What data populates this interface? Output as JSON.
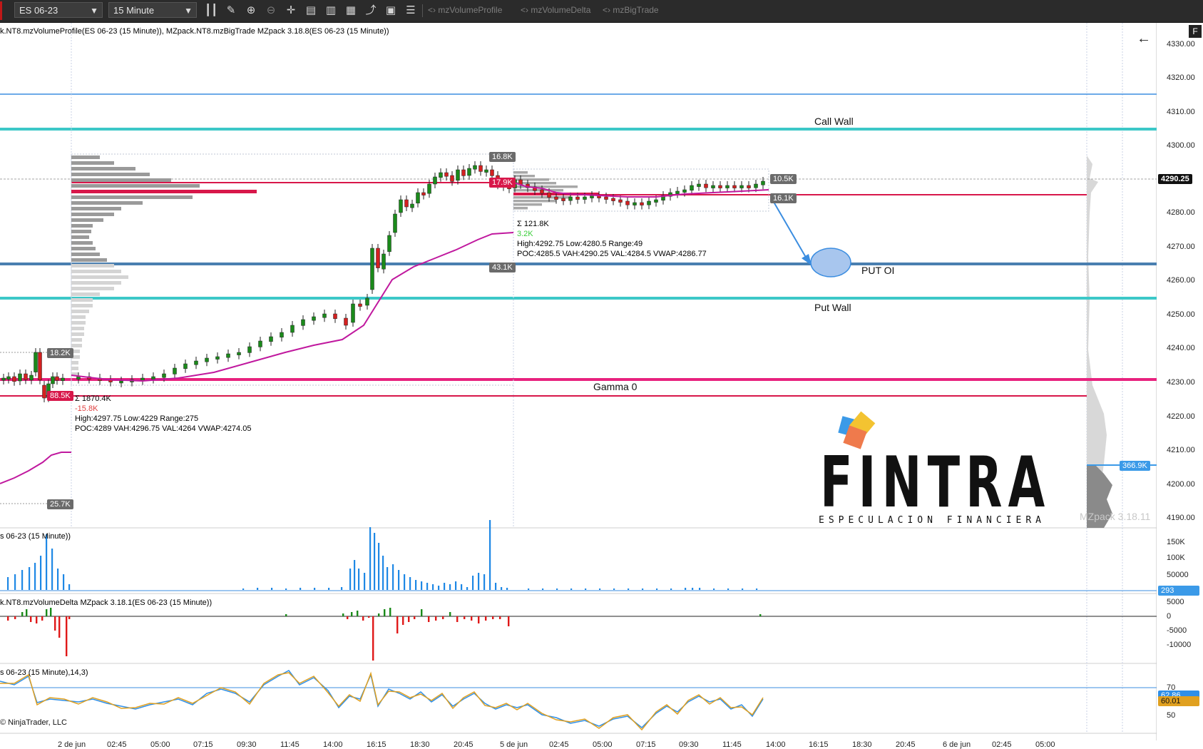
{
  "toolbar": {
    "instrument": "ES 06-23",
    "interval": "15 Minute",
    "indicators": [
      "mzVolumeProfile",
      "mzVolumeDelta",
      "mzBigTrade"
    ]
  },
  "chart": {
    "header": "k.NT8.mzVolumeProfile(ES 06-23 (15 Minute)), MZpack.NT8.mzBigTrade MZpack 3.18.8(ES 06-23 (15 Minute))",
    "levels": {
      "call_wall": "Call Wall",
      "put_oi": "PUT OI",
      "put_wall": "Put Wall",
      "gamma_0": "Gamma 0"
    },
    "profile1": {
      "sum": "Σ 1870.4K",
      "delta": "-15.8K",
      "hilo": "High:4297.75 Low:4229 Range:275",
      "poc": "POC:4289 VAH:4296.75 VAL:4264 VWAP:4274.05"
    },
    "profile2": {
      "sum": "Σ 121.8K",
      "delta": "3.2K",
      "hilo": "High:4292.75 Low:4280.5 Range:49",
      "poc": "POC:4285.5 VAH:4290.25 VAL:4284.5 VWAP:4286.77"
    },
    "tags": {
      "t16_8k": "16.8K",
      "t17_9k": "17.9K",
      "t43_1k": "43.1K",
      "t18_2k": "18.2K",
      "t88_5k": "88.5K",
      "t25_7k": "25.7K",
      "t10_5k": "10.5K",
      "t16_1k": "16.1K",
      "t366_9k": "366.9K"
    },
    "price_axis": [
      "4330.00",
      "4320.00",
      "4310.00",
      "4300.00",
      "4280.00",
      "4270.00",
      "4260.00",
      "4250.00",
      "4240.00",
      "4230.00",
      "4220.00",
      "4210.00",
      "4200.00",
      "4190.00"
    ],
    "last_price": "4290.25",
    "watermark": "MZpack 3.18.11"
  },
  "volume_panel": {
    "title": "s 06-23 (15 Minute))",
    "axis": [
      "150K",
      "100K",
      "50000"
    ],
    "last": "293"
  },
  "delta_panel": {
    "title": "k.NT8.mzVolumeDelta MZpack 3.18.1(ES 06-23 (15 Minute))",
    "axis": [
      "5000",
      "0",
      "-5000",
      "-10000"
    ]
  },
  "stoch_panel": {
    "title": "s 06-23 (15 Minute),14,3)",
    "axis": [
      "70",
      "50"
    ],
    "value1": "62.86",
    "value2": "60.01"
  },
  "time_axis": [
    "2 de jun",
    "02:45",
    "05:00",
    "07:15",
    "09:30",
    "11:45",
    "14:00",
    "16:15",
    "18:30",
    "20:45",
    "5 de jun",
    "02:45",
    "05:00",
    "07:15",
    "09:30",
    "11:45",
    "14:00",
    "16:15",
    "18:30",
    "20:45",
    "6 de jun",
    "02:45",
    "05:00"
  ],
  "copyright": "© NinjaTrader, LLC",
  "logo": {
    "name": "FINTRA",
    "tagline": "ESPECULACION FINANCIERA"
  },
  "colors": {
    "toolbar_bg": "#2b2b2b",
    "call_put_wall": "#3cc8c8",
    "put_oi_line": "#4a7fb0",
    "gamma_line": "#e8227e",
    "poc_line": "#d8174a",
    "vwap": "#c0189e",
    "up_candle": "#1a8a1a",
    "down_candle": "#d42020",
    "volume_bar": "#1e88e5",
    "stoch_k": "#2f8fe8",
    "stoch_d": "#e0a020",
    "last_price_tag": "#111111",
    "vol_tag": "#6b6b6b",
    "big_trade_tag": "#3b9ae8"
  }
}
